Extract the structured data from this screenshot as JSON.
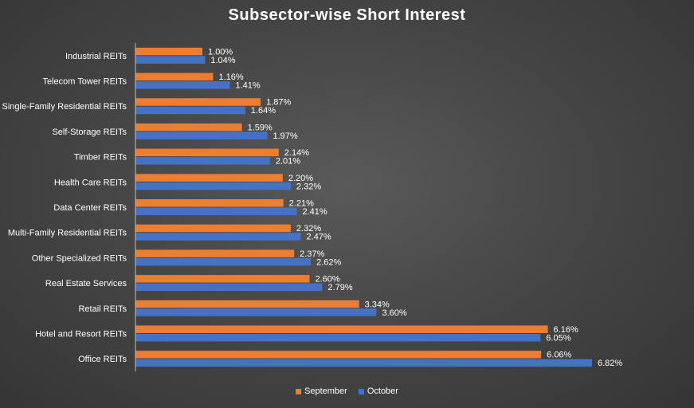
{
  "chart_data": {
    "type": "bar",
    "orientation": "horizontal",
    "title": "Subsector-wise Short Interest",
    "xlabel": "",
    "ylabel": "",
    "xlim": [
      0,
      7
    ],
    "grid": false,
    "legend_position": "bottom",
    "categories": [
      "Industrial REITs",
      "Telecom Tower REITs",
      "Single-Family Residential REITs",
      "Self-Storage REITs",
      "Timber REITs",
      "Health Care REITs",
      "Data Center REITs",
      "Multi-Family Residential REITs",
      "Other Specialized REITs",
      "Real Estate Services",
      "Retail REITs",
      "Hotel and Resort REITs",
      "Office REITs"
    ],
    "series": [
      {
        "name": "September",
        "color": "#ED7D31",
        "values": [
          1.0,
          1.16,
          1.87,
          1.59,
          2.14,
          2.2,
          2.21,
          2.32,
          2.37,
          2.6,
          3.34,
          6.16,
          6.06
        ],
        "labels": [
          "1.00%",
          "1.16%",
          "1.87%",
          "1.59%",
          "2.14%",
          "2.20%",
          "2.21%",
          "2.32%",
          "2.37%",
          "2.60%",
          "3.34%",
          "6.16%",
          "6.06%"
        ]
      },
      {
        "name": "October",
        "color": "#4472C4",
        "values": [
          1.04,
          1.41,
          1.64,
          1.97,
          2.01,
          2.32,
          2.41,
          2.47,
          2.62,
          2.79,
          3.6,
          6.05,
          6.82
        ],
        "labels": [
          "1.04%",
          "1.41%",
          "1.64%",
          "1.97%",
          "2.01%",
          "2.32%",
          "2.41%",
          "2.47%",
          "2.62%",
          "2.79%",
          "3.60%",
          "6.05%",
          "6.82%"
        ]
      }
    ]
  }
}
